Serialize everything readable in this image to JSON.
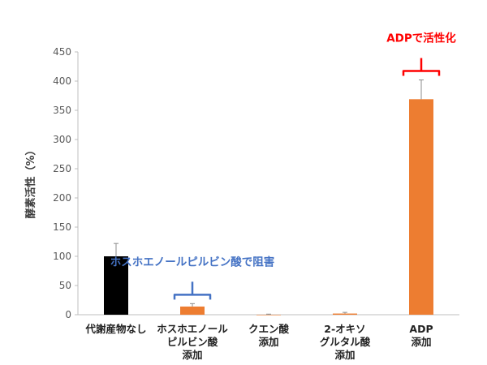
{
  "chart_data": {
    "type": "bar",
    "title": "",
    "xlabel": "",
    "ylabel": "酵素活性（%）",
    "ylim": [
      0,
      450
    ],
    "yticks": [
      0,
      50,
      100,
      150,
      200,
      250,
      300,
      350,
      400,
      450
    ],
    "grid": false,
    "categories": [
      [
        "代謝産物なし"
      ],
      [
        "ホスホエノール",
        "ピルビン酸",
        "添加"
      ],
      [
        "クエン酸",
        "添加"
      ],
      [
        "2-オキソ",
        "グルタル酸",
        "添加"
      ],
      [
        "ADP",
        "添加"
      ]
    ],
    "values": [
      100,
      14,
      0,
      2,
      369
    ],
    "errors": [
      22,
      5,
      1,
      2,
      33
    ],
    "bar_colors": [
      "#000000",
      "#ED7D31",
      "#ED7D31",
      "#ED7D31",
      "#ED7D31"
    ],
    "annotations": [
      {
        "text": "ホスホエノールピルビン酸で阻害",
        "color": "#4472C4",
        "bar_index": 1
      },
      {
        "text": "ADPで活性化",
        "color": "#FF0000",
        "bar_index": 4
      }
    ]
  }
}
